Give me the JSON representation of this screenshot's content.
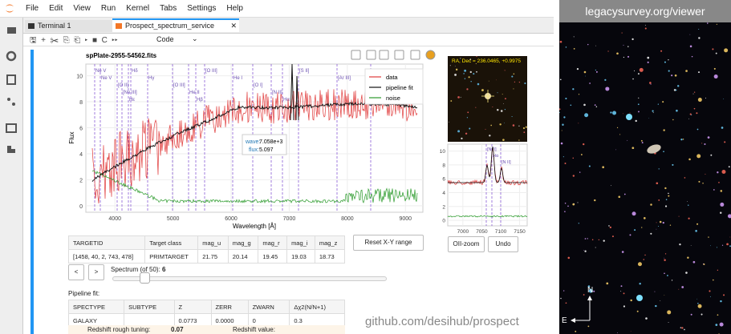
{
  "menu": [
    "File",
    "Edit",
    "View",
    "Run",
    "Kernel",
    "Tabs",
    "Settings",
    "Help"
  ],
  "tabs": [
    "Terminal 1",
    "Prospect_spectrum_service"
  ],
  "toolbar": {
    "cell_type": "Code"
  },
  "plot": {
    "title": "spPlate-2955-54562.fits",
    "y_label": "Flux",
    "x_label": "Wavelength [Å]",
    "xlim": [
      3500,
      9300
    ],
    "ylim": [
      -0.5,
      10.9
    ],
    "xticks": [
      4000,
      5000,
      6000,
      7000,
      8000,
      9000
    ],
    "yticks": [
      0,
      2,
      4,
      6,
      8,
      10
    ],
    "legend": [
      "data",
      "pipeline fit",
      "noise"
    ],
    "lines": [
      "Ne V",
      "Ne V",
      "[O II]",
      "[Ne III]",
      "Hε",
      "Hδ",
      "Hγ",
      "[O III]",
      "He II",
      "Hβ",
      "[O III]",
      "He I",
      "[O I]",
      "[N II]",
      "Hα",
      "[S II]",
      "[Ar III]",
      "[Ar III]"
    ],
    "tooltip": {
      "wave_label": "wave:",
      "wave": "7.058e+3",
      "flux_label": "flux:",
      "flux": "5.097"
    }
  },
  "image_caption": "RA, Dec = 236.0465, +0.9975",
  "zoom": {
    "xlim": [
      6960,
      7170
    ],
    "ylim": [
      -0.8,
      11
    ],
    "xticks": [
      7000,
      7050,
      7100,
      7150
    ],
    "yticks": [
      0,
      2,
      4,
      6,
      8,
      10
    ],
    "lines": [
      "[N II]",
      "Hα",
      "[N II]"
    ]
  },
  "buttons": {
    "zoom": "OII-zoom",
    "undo": "Undo",
    "reset": "Reset X-Y range",
    "prev": "<",
    "next": ">"
  },
  "targets": {
    "header": [
      "TARGETID",
      "Target class",
      "mag_u",
      "mag_g",
      "mag_r",
      "mag_i",
      "mag_z"
    ],
    "row": [
      "[1458, 40, 2, 743, 478]",
      "PRIMTARGET",
      "21.75",
      "20.14",
      "19.45",
      "19.03",
      "18.73"
    ]
  },
  "spectrum_label": "Spectrum (of 50):",
  "spectrum_index": "6",
  "pipeline_label": "Pipeline fit:",
  "pipeline": {
    "header": [
      "SPECTYPE",
      "SUBTYPE",
      "Z",
      "ZERR",
      "ZWARN",
      "Δχ2(N/N+1)"
    ],
    "row": [
      "GALAXY",
      "",
      "0.0773",
      "0.0000",
      "0",
      "0.3"
    ]
  },
  "rough_label": "Redshift rough tuning:",
  "rough_value": "0.07",
  "redshift_label": "Redshift value:",
  "watermark": "github.com/desihub/prospect",
  "sky": {
    "header": "legacysurvey.org/viewer",
    "north": "N",
    "east": "E"
  }
}
